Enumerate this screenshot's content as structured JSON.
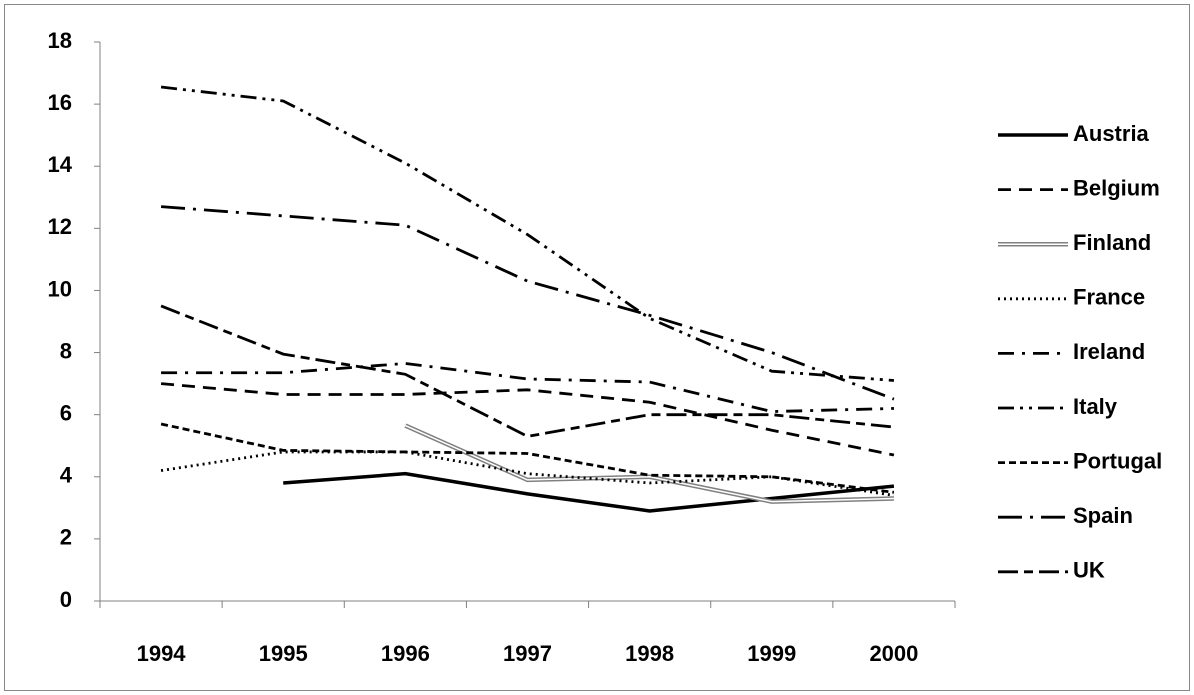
{
  "chart_data": {
    "type": "line",
    "categories": [
      "1994",
      "1995",
      "1996",
      "1997",
      "1998",
      "1999",
      "2000"
    ],
    "ylim": [
      0,
      18
    ],
    "yticks": [
      0,
      2,
      4,
      6,
      8,
      10,
      12,
      14,
      16,
      18
    ],
    "series": [
      {
        "name": "Austria",
        "color": "#000000",
        "dash": "solid",
        "values": [
          null,
          3.8,
          4.1,
          3.45,
          2.9,
          3.3,
          3.7
        ]
      },
      {
        "name": "Belgium",
        "color": "#000000",
        "dash": "dash",
        "values": [
          7.0,
          6.65,
          6.65,
          6.8,
          6.4,
          5.5,
          4.7
        ]
      },
      {
        "name": "Finland",
        "color": "#808080",
        "dash": "double",
        "values": [
          null,
          null,
          5.65,
          3.9,
          4.0,
          3.2,
          3.3
        ]
      },
      {
        "name": "France",
        "color": "#000000",
        "dash": "dot",
        "values": [
          4.2,
          4.8,
          4.8,
          4.1,
          3.8,
          4.0,
          3.4
        ]
      },
      {
        "name": "Ireland",
        "color": "#000000",
        "dash": "dash-dot",
        "values": [
          7.35,
          7.35,
          7.65,
          7.15,
          7.05,
          6.1,
          6.2
        ]
      },
      {
        "name": "Italy",
        "color": "#000000",
        "dash": "dash-dot-dot",
        "values": [
          16.55,
          16.1,
          14.1,
          11.8,
          9.1,
          7.4,
          7.1
        ]
      },
      {
        "name": "Portugal",
        "color": "#000000",
        "dash": "short-dash",
        "values": [
          5.7,
          4.85,
          4.8,
          4.75,
          4.05,
          4.0,
          3.5
        ]
      },
      {
        "name": "Spain",
        "color": "#000000",
        "dash": "long-dash-dot",
        "values": [
          12.7,
          12.4,
          12.1,
          10.3,
          9.2,
          8.0,
          6.5
        ]
      },
      {
        "name": "UK",
        "color": "#000000",
        "dash": "long-dash",
        "values": [
          9.5,
          7.95,
          7.3,
          5.3,
          6.0,
          6.0,
          5.6
        ]
      }
    ]
  }
}
